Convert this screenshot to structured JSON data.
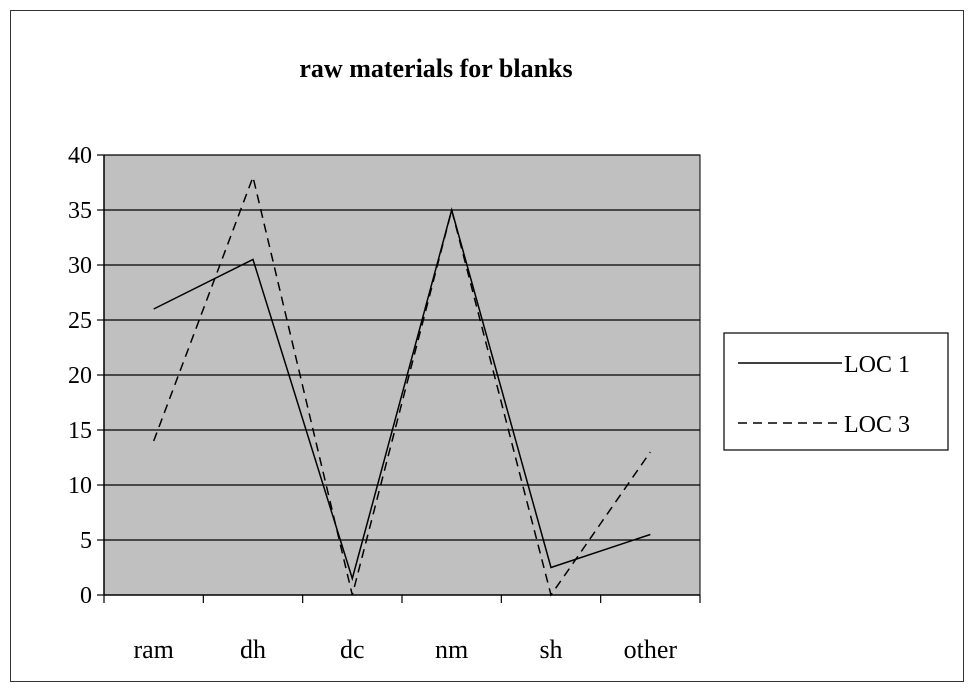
{
  "chart_data": {
    "type": "line",
    "title": "raw materials for blanks",
    "xlabel": "",
    "ylabel": "",
    "categories": [
      "ram",
      "dh",
      "dc",
      "nm",
      "sh",
      "other"
    ],
    "series": [
      {
        "name": "LOC 1",
        "values": [
          26,
          30.5,
          1.5,
          35,
          2.5,
          5.5
        ],
        "style": "solid"
      },
      {
        "name": "LOC 3",
        "values": [
          14,
          38,
          0,
          35,
          0,
          13
        ],
        "style": "dashed"
      }
    ],
    "ylim": [
      0,
      40
    ],
    "yticks": [
      0,
      5,
      10,
      15,
      20,
      25,
      30,
      35,
      40
    ],
    "grid": true,
    "legend": "right",
    "colors": {
      "plot_bg": "#c0c0c0",
      "line": "#000000",
      "page": "#ffffff"
    }
  }
}
